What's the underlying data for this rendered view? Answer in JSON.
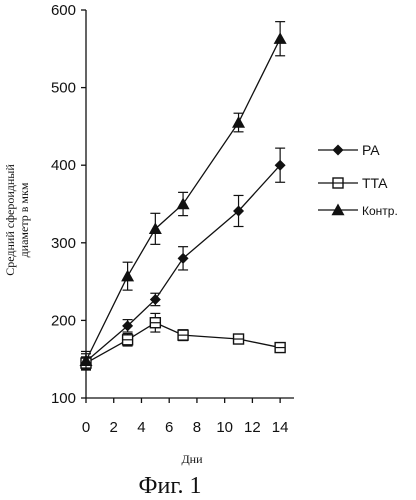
{
  "chart_data": {
    "type": "line",
    "caption": "Фиг. 1",
    "xlabel": "Дни",
    "ylabel_line1": "Средний сфероидный",
    "ylabel_line2": "диаметр в мкм",
    "xlim": [
      0,
      15
    ],
    "ylim": [
      100,
      600
    ],
    "x_ticks": [
      0,
      2,
      4,
      6,
      8,
      10,
      12,
      14
    ],
    "y_ticks": [
      100,
      200,
      300,
      400,
      500,
      600
    ],
    "grid": false,
    "legend_position": "right",
    "series": [
      {
        "name": "PA",
        "marker": "diamond",
        "x": [
          0,
          3,
          5,
          7,
          11,
          14
        ],
        "y": [
          147,
          193,
          227,
          280,
          341,
          400
        ],
        "err": [
          10,
          8,
          8,
          15,
          20,
          22
        ]
      },
      {
        "name": "TTA",
        "marker": "square-open",
        "x": [
          0,
          3,
          5,
          7,
          11,
          14
        ],
        "y": [
          145,
          175,
          197,
          181,
          176,
          165
        ],
        "err": [
          8,
          8,
          12,
          7,
          6,
          6
        ]
      },
      {
        "name": "Контр.",
        "marker": "triangle",
        "x": [
          0,
          3,
          5,
          7,
          11,
          14
        ],
        "y": [
          148,
          257,
          318,
          350,
          455,
          563
        ],
        "err": [
          12,
          18,
          20,
          15,
          12,
          22
        ]
      }
    ]
  }
}
